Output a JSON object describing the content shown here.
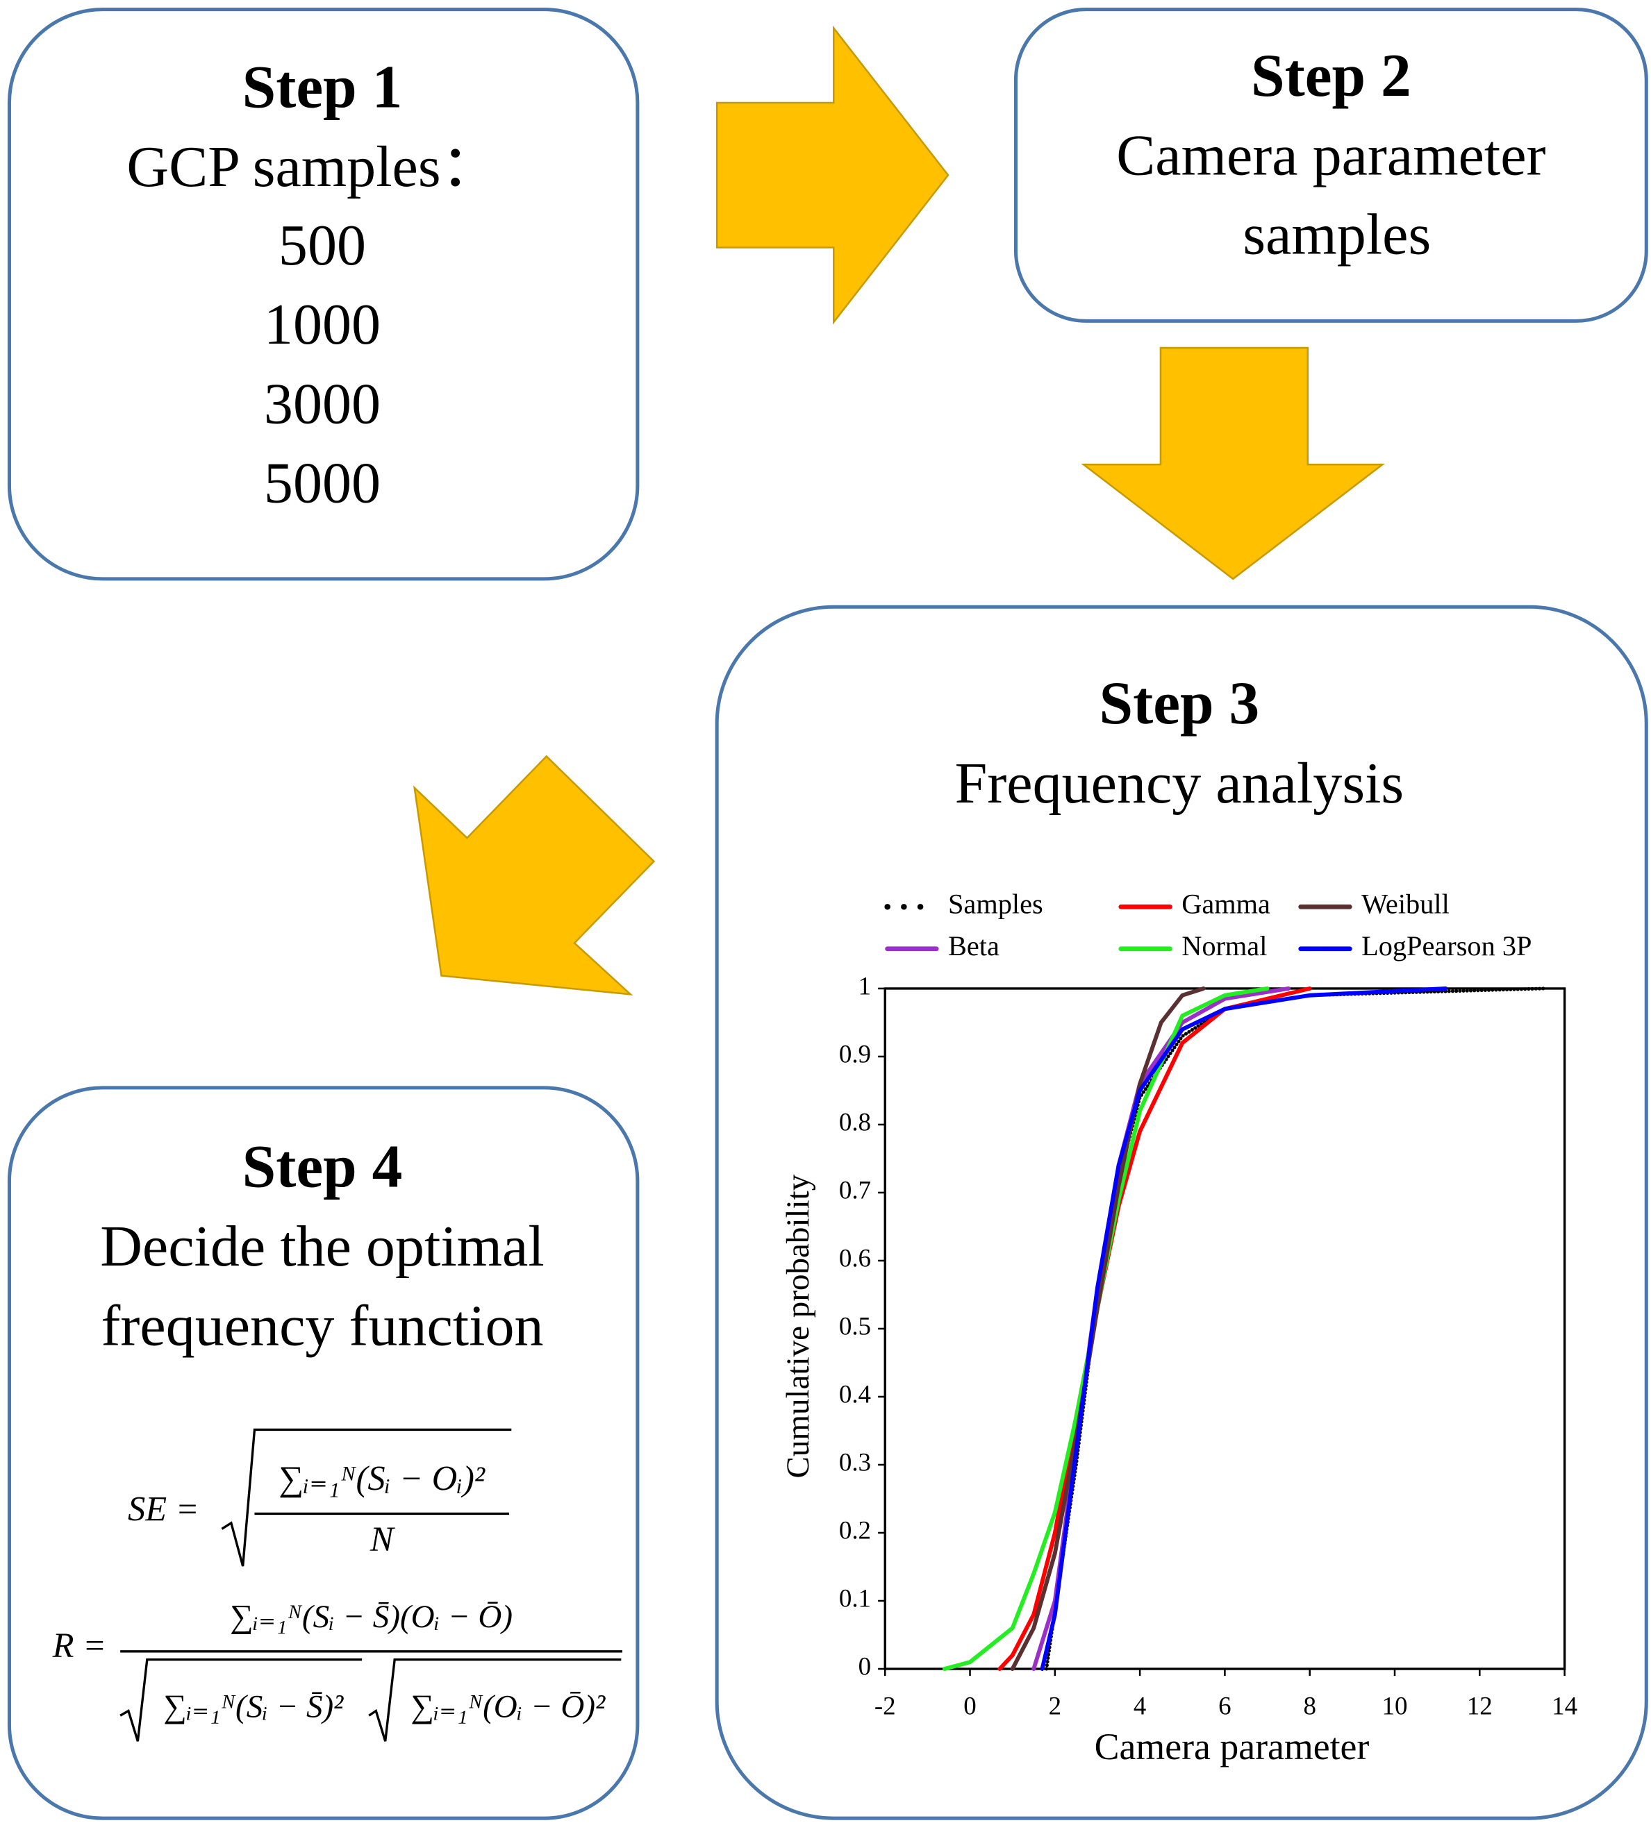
{
  "steps": [
    {
      "title": "Step 1",
      "lines": [
        "GCP samples：",
        "500",
        "1000",
        "3000",
        "5000"
      ]
    },
    {
      "title": "Step 2",
      "lines": [
        "Camera parameter",
        "samples"
      ]
    },
    {
      "title": "Step 3",
      "lines": [
        "Frequency analysis"
      ]
    },
    {
      "title": "Step 4",
      "lines": [
        "Decide the optimal",
        "frequency function"
      ]
    }
  ],
  "formulas": {
    "se": {
      "lhs": "SE =",
      "numerator": "∑ᵢ₌₁ᴺ(Sᵢ − Oᵢ)²",
      "denominator": "N"
    },
    "r": {
      "lhs": "R =",
      "numerator": "∑ᵢ₌₁ᴺ(Sᵢ − S̄)(Oᵢ − Ō)",
      "denominator_left": "∑ᵢ₌₁ᴺ(Sᵢ − S̄)²",
      "denominator_right": "∑ᵢ₌₁ᴺ(Oᵢ − Ō)²"
    }
  },
  "chart": {
    "type": "line",
    "xlabel": "Camera parameter",
    "ylabel": "Cumulative probability",
    "xlim": [
      -2,
      14
    ],
    "xticks": [
      -2,
      0,
      2,
      4,
      6,
      8,
      10,
      12,
      14
    ],
    "ylim": [
      0,
      1
    ],
    "yticks": [
      0,
      0.1,
      0.2,
      0.3,
      0.4,
      0.5,
      0.6,
      0.7,
      0.8,
      0.9,
      1
    ],
    "series": [
      {
        "name": "Samples",
        "color": "#000000",
        "style": "dotted",
        "x": [
          1.8,
          2.5,
          3,
          3.5,
          4,
          5,
          6,
          8,
          13.5
        ],
        "values": [
          0,
          0.3,
          0.55,
          0.72,
          0.84,
          0.93,
          0.97,
          0.99,
          1
        ]
      },
      {
        "name": "Beta",
        "color": "#9b30c8",
        "style": "solid",
        "x": [
          1.5,
          2,
          2.5,
          3,
          3.5,
          4,
          5,
          6,
          7.5
        ],
        "values": [
          0,
          0.1,
          0.33,
          0.56,
          0.74,
          0.86,
          0.95,
          0.985,
          1
        ]
      },
      {
        "name": "Gamma",
        "color": "#ff0000",
        "style": "solid",
        "x": [
          0.7,
          1,
          1.5,
          2,
          2.5,
          3,
          3.5,
          4,
          5,
          6,
          8
        ],
        "values": [
          0,
          0.02,
          0.08,
          0.2,
          0.37,
          0.53,
          0.68,
          0.79,
          0.92,
          0.97,
          1
        ]
      },
      {
        "name": "Normal",
        "color": "#22ee22",
        "style": "solid",
        "x": [
          -0.6,
          0,
          1,
          1.5,
          2,
          2.5,
          3,
          3.5,
          4,
          5,
          6,
          7
        ],
        "values": [
          0,
          0.01,
          0.06,
          0.14,
          0.23,
          0.37,
          0.53,
          0.69,
          0.82,
          0.96,
          0.99,
          1
        ]
      },
      {
        "name": "Weibull",
        "color": "#5a3030",
        "style": "solid",
        "x": [
          1,
          1.5,
          2,
          2.5,
          3,
          3.5,
          4,
          4.5,
          5,
          5.5
        ],
        "values": [
          0,
          0.06,
          0.17,
          0.34,
          0.53,
          0.71,
          0.86,
          0.95,
          0.99,
          1
        ]
      },
      {
        "name": "LogPearson 3P",
        "color": "#0000ff",
        "style": "solid",
        "x": [
          1.7,
          2,
          2.5,
          3,
          3.5,
          4,
          5,
          6,
          8,
          11.2
        ],
        "values": [
          0,
          0.08,
          0.32,
          0.56,
          0.74,
          0.85,
          0.94,
          0.97,
          0.99,
          1
        ]
      }
    ]
  }
}
